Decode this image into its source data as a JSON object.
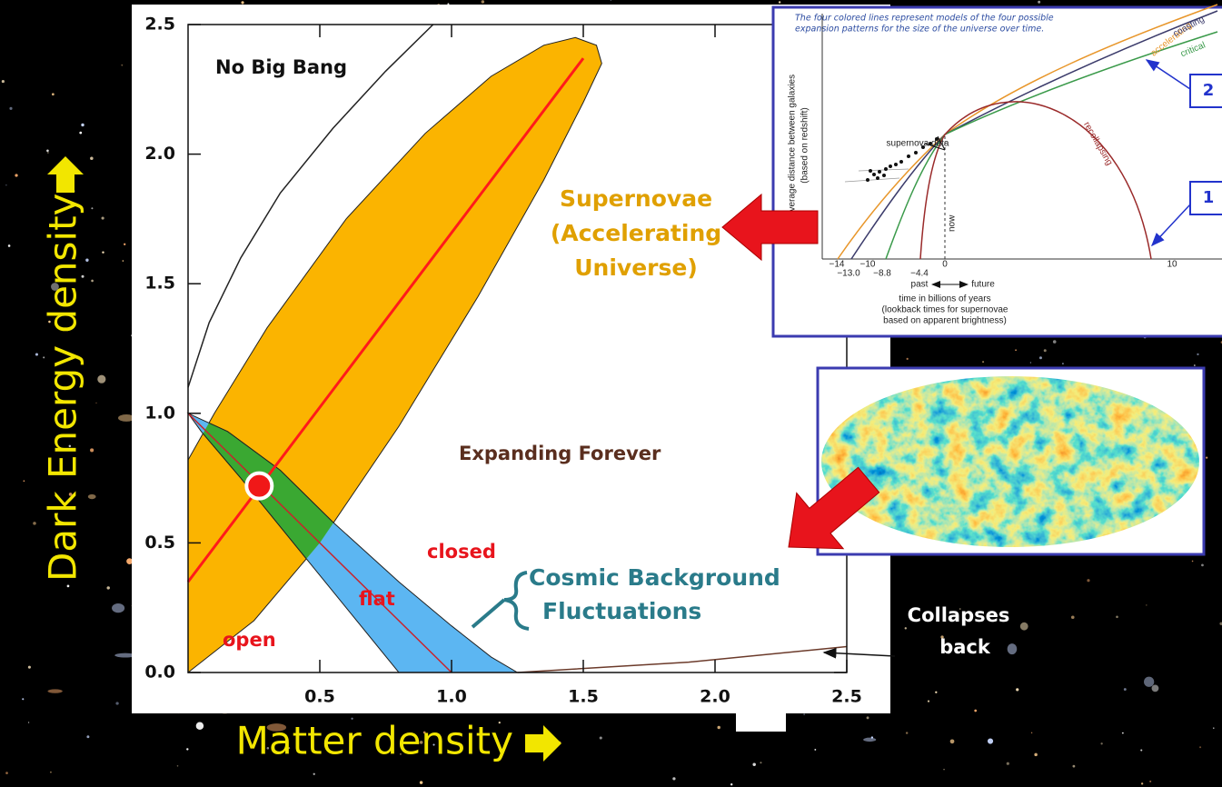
{
  "chart_data": {
    "type": "contour",
    "xlabel": "Matter density",
    "ylabel": "Dark Energy density",
    "xlim": [
      0,
      2.5
    ],
    "ylim": [
      0,
      2.5
    ],
    "xticks": [
      0.5,
      {
        "value": 1,
        "label": "1.0"
      },
      1.5,
      {
        "value": 2,
        "label": "2.0"
      },
      2.5
    ],
    "yticks": [
      {
        "value": 0,
        "label": "0.0"
      },
      0.5,
      {
        "value": 1,
        "label": "1.0"
      },
      1.5,
      {
        "value": 2,
        "label": "2.0"
      },
      2.5
    ],
    "regions": [
      {
        "color": "#fbb400",
        "x": [
          0,
          0.25,
          0.5,
          0.8,
          1.1,
          1.35,
          1.5,
          1.57,
          1.55,
          1.47,
          1.35,
          1.15,
          0.9,
          0.6,
          0.3,
          0.1,
          0
        ],
        "y": [
          0,
          0.2,
          0.5,
          0.95,
          1.45,
          1.9,
          2.2,
          2.35,
          2.42,
          2.45,
          2.42,
          2.3,
          2.08,
          1.75,
          1.33,
          1.0,
          0.82
        ]
      },
      {
        "color": "#5cb6f2",
        "x": [
          0,
          0.15,
          0.35,
          0.55,
          0.8,
          1.0,
          1.15,
          1.25,
          0.8,
          0.6,
          0.4,
          0.2,
          0.05
        ],
        "y": [
          1.0,
          0.93,
          0.78,
          0.58,
          0.35,
          0.18,
          0.06,
          0,
          0,
          0.25,
          0.5,
          0.75,
          0.93
        ]
      }
    ],
    "overlap_color": "#3aa832",
    "lines": [
      {
        "color": "#222222",
        "x": [
          0,
          0.08,
          0.2,
          0.35,
          0.55,
          0.75,
          0.93
        ],
        "y": [
          1.1,
          1.35,
          1.6,
          1.85,
          2.1,
          2.32,
          2.5
        ]
      },
      {
        "color": "#c8242c",
        "x": [
          0,
          1
        ],
        "y": [
          1,
          0
        ]
      },
      {
        "color": "#ff1a1a",
        "x": [
          0,
          1.5
        ],
        "y": [
          0.35,
          2.37
        ]
      },
      {
        "color": "#6b3a2a",
        "x": [
          1.25,
          1.9,
          2.5
        ],
        "y": [
          0,
          0.04,
          0.1
        ]
      }
    ],
    "point": {
      "x": 0.27,
      "y": 0.72,
      "color": "#f01818"
    },
    "annotations": {
      "no_big_bang": "No Big Bang",
      "expanding": "Expanding Forever",
      "closed": "closed",
      "flat": "flat",
      "open": "open",
      "supernova": [
        "Supernovae",
        "(Accelerating",
        "Universe)"
      ],
      "cmb": [
        "Cosmic Background",
        "Fluctuations"
      ],
      "collapse": [
        "Collapses",
        "back"
      ]
    }
  },
  "inset": {
    "caption": [
      "The four colored lines represent models of the four possible",
      "expansion patterns for the size of the universe over time."
    ],
    "ylabel": [
      "average distance between galaxies",
      "(based on redshift)"
    ],
    "curves": [
      "accelerating",
      "coasting",
      "critical",
      "recollapsing"
    ],
    "supernova_data": "supernova data",
    "now": "now",
    "past": "past",
    "future": "future",
    "ticks": [
      "−14",
      "−13.0",
      "−10",
      "−8.8",
      "−4.4",
      "0",
      "10"
    ],
    "xlabel": [
      "time in billions of years",
      "(lookback times for supernovae",
      "based on apparent brightness)"
    ],
    "callouts": [
      "2",
      "1"
    ]
  }
}
